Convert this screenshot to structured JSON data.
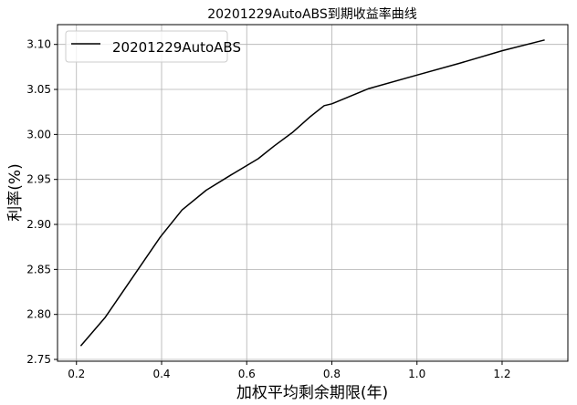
{
  "chart_data": {
    "type": "line",
    "title": "20201229AutoABS到期收益率曲线",
    "xlabel": "加权平均剩余期限(年)",
    "ylabel": "利率(%)",
    "xlim": [
      0.1555,
      1.3545
    ],
    "ylim": [
      2.748,
      3.122
    ],
    "xticks": [
      0.2,
      0.4,
      0.6,
      0.8,
      1.0,
      1.2
    ],
    "xtick_labels": [
      "0.2",
      "0.4",
      "0.6",
      "0.8",
      "1.0",
      "1.2"
    ],
    "yticks": [
      2.75,
      2.8,
      2.85,
      2.9,
      2.95,
      3.0,
      3.05,
      3.1
    ],
    "ytick_labels": [
      "2.75",
      "2.80",
      "2.85",
      "2.90",
      "2.95",
      "3.00",
      "3.05",
      "3.10"
    ],
    "grid": true,
    "legend_position": "top-left",
    "series": [
      {
        "name": "20201229AutoABS",
        "color": "#000000",
        "x": [
          0.21,
          0.268,
          0.333,
          0.397,
          0.448,
          0.505,
          0.563,
          0.627,
          0.664,
          0.707,
          0.75,
          0.782,
          0.8,
          0.887,
          1.0,
          1.1,
          1.2,
          1.3
        ],
        "y": [
          2.765,
          2.797,
          2.842,
          2.886,
          2.916,
          2.938,
          2.955,
          2.973,
          2.987,
          3.002,
          3.02,
          3.032,
          3.034,
          3.051,
          3.066,
          3.079,
          3.093,
          3.105
        ]
      }
    ]
  }
}
